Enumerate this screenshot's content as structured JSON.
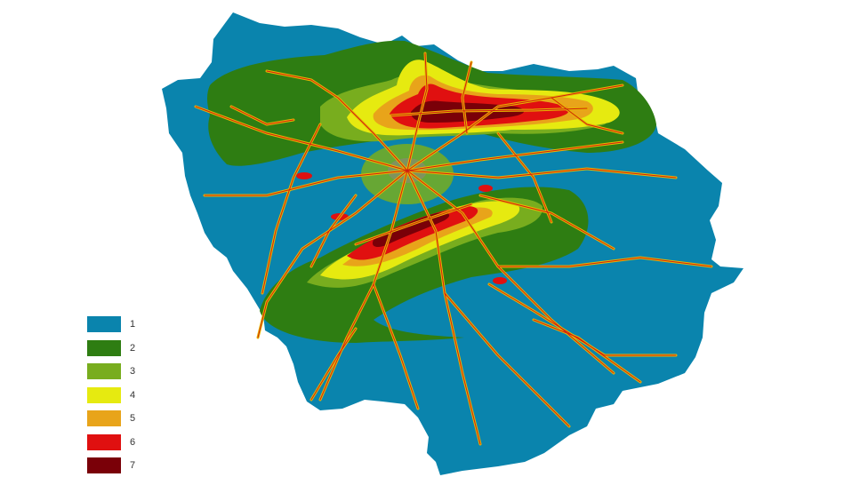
{
  "map": {
    "region_fill": "#0a84ad",
    "road_color": "#e8b800",
    "road_core_color": "#d01f10"
  },
  "legend": {
    "items": [
      {
        "label": "1",
        "color": "#0a84ad"
      },
      {
        "label": "2",
        "color": "#2e7d12"
      },
      {
        "label": "3",
        "color": "#78ad1e"
      },
      {
        "label": "4",
        "color": "#e6ea10"
      },
      {
        "label": "5",
        "color": "#e8a41a"
      },
      {
        "label": "6",
        "color": "#e01010"
      },
      {
        "label": "7",
        "color": "#7a0008"
      }
    ]
  }
}
